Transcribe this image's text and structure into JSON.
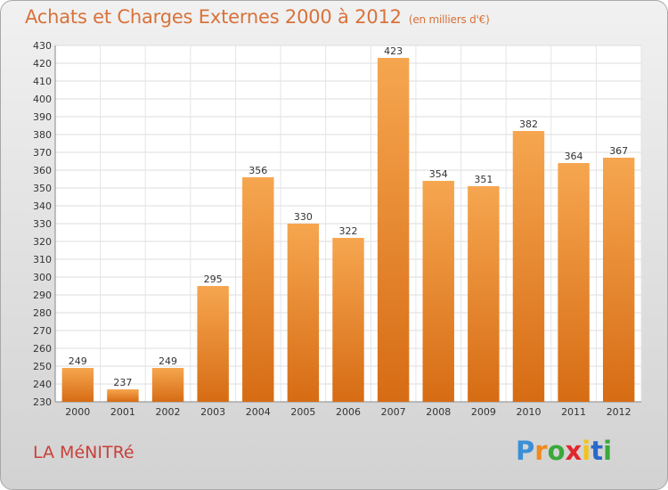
{
  "header": {
    "title": "Achats et Charges Externes 2000 à 2012",
    "subtitle": "(en milliers d'€)"
  },
  "footer": {
    "commune": "LA MéNITRé",
    "logo": [
      "P",
      "r",
      "o",
      "x",
      "i",
      "t",
      "i"
    ]
  },
  "colors": {
    "bar_top": "#f6a650",
    "bar_bottom": "#d66c14",
    "title": "#d8723a",
    "commune": "#c9403a"
  },
  "chart_data": {
    "type": "bar",
    "title": "Achats et Charges Externes 2000 à 2012",
    "subtitle": "(en milliers d'€)",
    "xlabel": "",
    "ylabel": "",
    "categories": [
      "2000",
      "2001",
      "2002",
      "2003",
      "2004",
      "2005",
      "2006",
      "2007",
      "2008",
      "2009",
      "2010",
      "2011",
      "2012"
    ],
    "values": [
      249,
      237,
      249,
      295,
      356,
      330,
      322,
      423,
      354,
      351,
      382,
      364,
      367
    ],
    "ylim": [
      230,
      430
    ],
    "ytick_step": 10,
    "grid": true
  }
}
